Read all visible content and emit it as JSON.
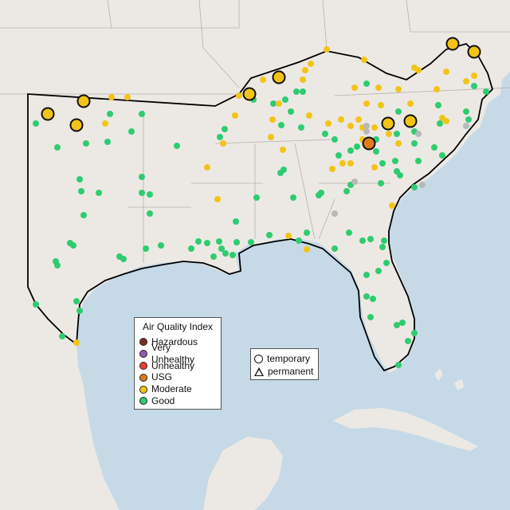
{
  "colors": {
    "hazardous": "#7e2c22",
    "very_unhealthy": "#8f5bb2",
    "unhealthy": "#e8412f",
    "usg": "#e07b1a",
    "moderate": "#f2c418",
    "good": "#2ecc71",
    "no_data": "#b8b8b8",
    "land": "#ece9e4",
    "water": "#c6d9e6",
    "region_outline": "#000000"
  },
  "legend_aqi": {
    "title": "Air Quality Index",
    "items": [
      {
        "label": "Hazardous",
        "color_key": "hazardous"
      },
      {
        "label": "Very Unhealthy",
        "color_key": "very_unhealthy"
      },
      {
        "label": "Unhealthy",
        "color_key": "unhealthy"
      },
      {
        "label": "USG",
        "color_key": "usg"
      },
      {
        "label": "Moderate",
        "color_key": "moderate"
      },
      {
        "label": "Good",
        "color_key": "good"
      }
    ]
  },
  "legend_monitor": {
    "items": [
      {
        "label": "temporary",
        "shape": "circle"
      },
      {
        "label": "permanent",
        "shape": "triangle"
      }
    ]
  }
}
